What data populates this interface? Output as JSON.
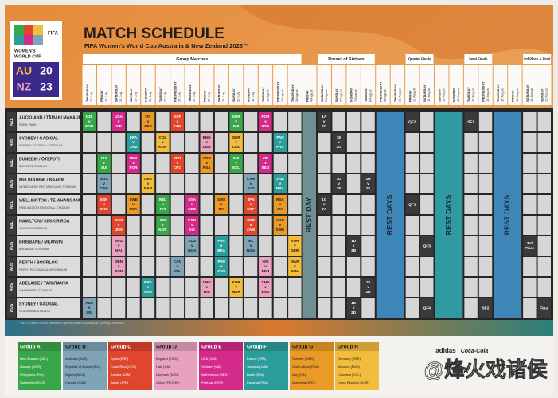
{
  "header": {
    "title": "MATCH SCHEDULE",
    "subtitle": "FIFA Women's World Cup Australia & New Zealand 2023™"
  },
  "logo": {
    "org": "FIFA",
    "name": [
      "WOMEN'S",
      "WORLD CUP"
    ],
    "code": [
      "AU",
      "NZ"
    ],
    "year": [
      "20",
      "23"
    ]
  },
  "stages": [
    "Group Matches",
    "Round of Sixteen",
    "Quarter Finals",
    "Semi Finals",
    "3rd Place & Final"
  ],
  "dates": [
    {
      "day": "THURSDAY",
      "date": "20 July"
    },
    {
      "day": "FRIDAY",
      "date": "21 July"
    },
    {
      "day": "SATURDAY",
      "date": "22 July"
    },
    {
      "day": "SUNDAY",
      "date": "23 July"
    },
    {
      "day": "MONDAY",
      "date": "24 July"
    },
    {
      "day": "TUESDAY",
      "date": "25 July"
    },
    {
      "day": "WEDNESDAY",
      "date": "26 July"
    },
    {
      "day": "THURSDAY",
      "date": "27 July"
    },
    {
      "day": "FRIDAY",
      "date": "28 July"
    },
    {
      "day": "SATURDAY",
      "date": "29 July"
    },
    {
      "day": "SUNDAY",
      "date": "30 July"
    },
    {
      "day": "MONDAY",
      "date": "31 July"
    },
    {
      "day": "TUESDAY",
      "date": "1 August"
    },
    {
      "day": "WEDNESDAY",
      "date": "2 August"
    },
    {
      "day": "THURSDAY",
      "date": "3 August"
    },
    {
      "day": "FRIDAY",
      "date": "4 August"
    },
    {
      "day": "SATURDAY",
      "date": "5 August"
    },
    {
      "day": "SUNDAY",
      "date": "6 August"
    },
    {
      "day": "MONDAY",
      "date": "7 August"
    },
    {
      "day": "TUESDAY",
      "date": "8 August"
    },
    {
      "day": "WEDNESDAY",
      "date": "9 August"
    },
    {
      "day": "THURSDAY",
      "date": "10 August"
    },
    {
      "day": "FRIDAY",
      "date": "11 August"
    },
    {
      "day": "SATURDAY",
      "date": "12 August"
    },
    {
      "day": "SUNDAY",
      "date": "13 August"
    },
    {
      "day": "MONDAY",
      "date": "14 August"
    },
    {
      "day": "TUESDAY",
      "date": "15 August"
    },
    {
      "day": "WEDNESDAY",
      "date": "16 August"
    },
    {
      "day": "THURSDAY",
      "date": "17 August"
    },
    {
      "day": "FRIDAY",
      "date": "18 August"
    },
    {
      "day": "SATURDAY",
      "date": "19 August"
    },
    {
      "day": "SUNDAY",
      "date": "20 August"
    }
  ],
  "rest_labels": [
    "REST DAY",
    "REST DAYS",
    "REST DAYS",
    "REST DAYS"
  ],
  "venues": [
    {
      "country": "NZL",
      "city": "AUCKLAND / TĀMAKI MAKAURAU",
      "stadium": "EDEN PARK",
      "cells": [
        {
          "lines": [
            "NZL",
            "v",
            "NOR"
          ],
          "color": "#3aa64a"
        },
        null,
        {
          "lines": [
            "USA",
            "v",
            "VIE"
          ],
          "color": "#d42b8b"
        },
        null,
        {
          "lines": [
            "ITA",
            "v",
            "ARG"
          ],
          "color": "#ea9a26"
        },
        null,
        {
          "lines": [
            "ESP",
            "v",
            "ZAM"
          ],
          "color": "#e0452e"
        },
        null,
        null,
        null,
        {
          "lines": [
            "NOR",
            "v",
            "PHI"
          ],
          "color": "#3aa64a"
        },
        null,
        {
          "lines": [
            "POR",
            "v",
            "USA"
          ],
          "color": "#d42b8b"
        },
        null,
        null,
        null,
        {
          "lines": [
            "1A",
            "v",
            "2C"
          ],
          "color": "#3a3a3a"
        },
        null,
        null,
        null,
        null,
        null,
        {
          "lines": [
            "QF2"
          ],
          "color": "#3a3a3a"
        },
        null,
        null,
        null,
        {
          "lines": [
            "SF1"
          ],
          "color": "#3a3a3a"
        },
        null,
        null,
        null,
        null,
        null
      ]
    },
    {
      "country": "AUS",
      "city": "SYDNEY / GADIGAL",
      "stadium": "SYDNEY FOOTBALL STADIUM",
      "cells": [
        null,
        null,
        null,
        {
          "lines": [
            "FRA",
            "v",
            "JAM"
          ],
          "color": "#2b9e9b"
        },
        null,
        {
          "lines": [
            "COL",
            "v",
            "KOR"
          ],
          "color": "#f2bd3c"
        },
        null,
        null,
        {
          "lines": [
            "ENG",
            "v",
            "DEN"
          ],
          "color": "#e8a2bd"
        },
        null,
        {
          "lines": [
            "GER",
            "v",
            "COL"
          ],
          "color": "#f2bd3c"
        },
        null,
        null,
        {
          "lines": [
            "PAN",
            "v",
            "FRA"
          ],
          "color": "#2b9e9b"
        },
        null,
        null,
        null,
        {
          "lines": [
            "1E",
            "v",
            "2G"
          ],
          "color": "#3a3a3a"
        },
        null,
        null,
        null,
        null,
        null,
        null,
        null,
        null,
        null,
        null,
        null,
        null,
        null,
        null
      ]
    },
    {
      "country": "NZL",
      "city": "DUNEDIN / ŌTEPOTI",
      "stadium": "DUNEDIN STADIUM",
      "cells": [
        null,
        {
          "lines": [
            "PHI",
            "v",
            "SUI"
          ],
          "color": "#3aa64a"
        },
        null,
        {
          "lines": [
            "NED",
            "v",
            "POR"
          ],
          "color": "#d42b8b"
        },
        null,
        null,
        {
          "lines": [
            "JPN",
            "v",
            "CRC"
          ],
          "color": "#e0452e"
        },
        null,
        {
          "lines": [
            "ARG",
            "v",
            "RSA"
          ],
          "color": "#ea9a26"
        },
        null,
        {
          "lines": [
            "SUI",
            "v",
            "NZL"
          ],
          "color": "#3aa64a"
        },
        null,
        {
          "lines": [
            "VIE",
            "v",
            "NED"
          ],
          "color": "#d42b8b"
        },
        null,
        null,
        null,
        null,
        null,
        null,
        null,
        null,
        null,
        null,
        null,
        null,
        null,
        null,
        null,
        null,
        null,
        null,
        null
      ]
    },
    {
      "country": "AUS",
      "city": "MELBOURNE / NAARM",
      "stadium": "MELBOURNE RECTANGULAR STADIUM",
      "cells": [
        null,
        {
          "lines": [
            "NGA",
            "v",
            "CAN"
          ],
          "color": "#7ea4b6"
        },
        null,
        null,
        {
          "lines": [
            "GER",
            "v",
            "MAR"
          ],
          "color": "#f2bd3c"
        },
        null,
        null,
        null,
        null,
        null,
        null,
        {
          "lines": [
            "CAN",
            "v",
            "AUS"
          ],
          "color": "#7ea4b6"
        },
        null,
        {
          "lines": [
            "JAM",
            "v",
            "BRA"
          ],
          "color": "#2b9e9b"
        },
        null,
        null,
        null,
        {
          "lines": [
            "1G",
            "v",
            "2E"
          ],
          "color": "#3a3a3a"
        },
        null,
        {
          "lines": [
            "1H",
            "v",
            "2F"
          ],
          "color": "#3a3a3a"
        },
        null,
        null,
        null,
        null,
        null,
        null,
        null,
        null,
        null,
        null,
        null,
        null
      ]
    },
    {
      "country": "NZL",
      "city": "WELLINGTON / TE WHANGANUI-A-TARA",
      "stadium": "WELLINGTON REGIONAL STADIUM",
      "cells": [
        null,
        {
          "lines": [
            "ESP",
            "v",
            "CRC"
          ],
          "color": "#e0452e"
        },
        null,
        {
          "lines": [
            "SWE",
            "v",
            "RSA"
          ],
          "color": "#ea9a26"
        },
        null,
        {
          "lines": [
            "NZL",
            "v",
            "PHI"
          ],
          "color": "#3aa64a"
        },
        null,
        {
          "lines": [
            "USA",
            "v",
            "NED"
          ],
          "color": "#d42b8b"
        },
        null,
        {
          "lines": [
            "SWE",
            "v",
            "ITA"
          ],
          "color": "#ea9a26"
        },
        null,
        {
          "lines": [
            "JPN",
            "v",
            "ESP"
          ],
          "color": "#e0452e"
        },
        null,
        {
          "lines": [
            "RSA",
            "v",
            "ITA"
          ],
          "color": "#ea9a26"
        },
        null,
        null,
        {
          "lines": [
            "1C",
            "v",
            "2A"
          ],
          "color": "#3a3a3a"
        },
        null,
        null,
        null,
        null,
        null,
        {
          "lines": [
            "QF1"
          ],
          "color": "#3a3a3a"
        },
        null,
        null,
        null,
        null,
        null,
        null,
        null,
        null,
        null
      ]
    },
    {
      "country": "NZL",
      "city": "HAMILTON / KIRIKIRIROA",
      "stadium": "WAIKATO STADIUM",
      "cells": [
        null,
        null,
        {
          "lines": [
            "ZAM",
            "v",
            "JPN"
          ],
          "color": "#e0452e"
        },
        null,
        null,
        {
          "lines": [
            "SUI",
            "v",
            "NOR"
          ],
          "color": "#3aa64a"
        },
        null,
        {
          "lines": [
            "POR",
            "v",
            "VIE"
          ],
          "color": "#d42b8b"
        },
        null,
        null,
        null,
        {
          "lines": [
            "CRC",
            "v",
            "ZAM"
          ],
          "color": "#e0452e"
        },
        null,
        {
          "lines": [
            "ARG",
            "v",
            "SWE"
          ],
          "color": "#ea9a26"
        },
        null,
        null,
        null,
        null,
        null,
        null,
        null,
        null,
        null,
        null,
        null,
        null,
        null,
        null,
        null,
        null,
        null,
        null
      ]
    },
    {
      "country": "AUS",
      "city": "BRISBANE / MEANJIN",
      "stadium": "BRISBANE STADIUM",
      "cells": [
        null,
        null,
        {
          "lines": [
            "ENG",
            "v",
            "HAI"
          ],
          "color": "#e8a2bd"
        },
        null,
        null,
        null,
        null,
        {
          "lines": [
            "AUS",
            "v",
            "NGA"
          ],
          "color": "#7ea4b6"
        },
        null,
        {
          "lines": [
            "FRA",
            "v",
            "BRA"
          ],
          "color": "#2b9e9b"
        },
        null,
        {
          "lines": [
            "IRL",
            "v",
            "NGA"
          ],
          "color": "#7ea4b6"
        },
        null,
        null,
        {
          "lines": [
            "KOR",
            "v",
            "GER"
          ],
          "color": "#f2bd3c"
        },
        null,
        null,
        null,
        {
          "lines": [
            "1D",
            "v",
            "2B"
          ],
          "color": "#3a3a3a"
        },
        null,
        null,
        null,
        null,
        {
          "lines": [
            "QF3"
          ],
          "color": "#3a3a3a"
        },
        null,
        null,
        null,
        null,
        null,
        null,
        {
          "lines": [
            "3rd",
            "Place"
          ],
          "color": "#3a3a3a"
        },
        null
      ]
    },
    {
      "country": "AUS",
      "city": "PERTH / BOORLOO",
      "stadium": "PERTH RECTANGULAR STADIUM",
      "cells": [
        null,
        null,
        {
          "lines": [
            "DEN",
            "v",
            "CHN"
          ],
          "color": "#e8a2bd"
        },
        null,
        null,
        null,
        {
          "lines": [
            "CAN",
            "v",
            "IRL"
          ],
          "color": "#7ea4b6"
        },
        null,
        null,
        {
          "lines": [
            "PAN",
            "v",
            "JAM"
          ],
          "color": "#2b9e9b"
        },
        null,
        null,
        {
          "lines": [
            "HAI",
            "v",
            "DEN"
          ],
          "color": "#e8a2bd"
        },
        null,
        {
          "lines": [
            "MAR",
            "v",
            "COL"
          ],
          "color": "#f2bd3c"
        },
        null,
        null,
        null,
        null,
        null,
        null,
        null,
        null,
        null,
        null,
        null,
        null,
        null,
        null,
        null,
        null,
        null
      ]
    },
    {
      "country": "AUS",
      "city": "ADELAIDE / TARNTANYA",
      "stadium": "HINDMARSH STADIUM",
      "cells": [
        null,
        null,
        null,
        null,
        {
          "lines": [
            "BRA",
            "v",
            "PAN"
          ],
          "color": "#2b9e9b"
        },
        null,
        null,
        null,
        {
          "lines": [
            "CHN",
            "v",
            "HAI"
          ],
          "color": "#e8a2bd"
        },
        null,
        {
          "lines": [
            "KOR",
            "v",
            "MAR"
          ],
          "color": "#f2bd3c"
        },
        null,
        {
          "lines": [
            "CHN",
            "v",
            "ENG"
          ],
          "color": "#e8a2bd"
        },
        null,
        null,
        null,
        null,
        null,
        null,
        {
          "lines": [
            "1F",
            "v",
            "2H"
          ],
          "color": "#3a3a3a"
        },
        null,
        null,
        null,
        null,
        null,
        null,
        null,
        null,
        null,
        null,
        null,
        null
      ]
    },
    {
      "country": "AUS",
      "city": "SYDNEY / GADIGAL",
      "stadium": "STADIUM AUSTRALIA",
      "cells": [
        {
          "lines": [
            "AUS",
            "v",
            "IRL"
          ],
          "color": "#7ea4b6"
        },
        null,
        null,
        null,
        null,
        null,
        null,
        null,
        null,
        null,
        null,
        null,
        null,
        null,
        null,
        null,
        null,
        null,
        {
          "lines": [
            "1B",
            "v",
            "2D"
          ],
          "color": "#3a3a3a"
        },
        null,
        null,
        null,
        null,
        {
          "lines": [
            "QF4"
          ],
          "color": "#3a3a3a"
        },
        null,
        null,
        null,
        {
          "lines": [
            "SF2"
          ],
          "color": "#3a3a3a"
        },
        null,
        null,
        null,
        {
          "lines": [
            "Final"
          ],
          "color": "#3a3a3a"
        }
      ]
    }
  ],
  "note": "* NOTE: Match in AUS will be the Opening match including the Opening Ceremony",
  "groups": [
    {
      "name": "Group A",
      "color": "#3aa64a",
      "teams": [
        "New Zealand (NZL)",
        "Norway (NOR)",
        "Philippines (PHI)",
        "Switzerland (SUI)"
      ]
    },
    {
      "name": "Group B",
      "color": "#7ea4b6",
      "teams": [
        "Australia (AUS)",
        "Republic of Ireland (IRL)",
        "Nigeria (NGA)",
        "Canada (CAN)"
      ]
    },
    {
      "name": "Group C",
      "color": "#e0452e",
      "teams": [
        "Spain (ESP)",
        "Costa Rica (CRC)",
        "Zambia (ZAM)",
        "Japan (JPN)"
      ]
    },
    {
      "name": "Group D",
      "color": "#e8a2bd",
      "teams": [
        "England (ENG)",
        "Haiti (HAI)",
        "Denmark (DEN)",
        "China PR (CHN)"
      ]
    },
    {
      "name": "Group E",
      "color": "#d42b8b",
      "teams": [
        "USA (USA)",
        "Vietnam (VIE)",
        "Netherlands (NED)",
        "Portugal (POR)"
      ]
    },
    {
      "name": "Group F",
      "color": "#2b9e9b",
      "teams": [
        "France (FRA)",
        "Jamaica (JAM)",
        "Brazil (BRA)",
        "Panama (PAN)"
      ]
    },
    {
      "name": "Group G",
      "color": "#ea9a26",
      "teams": [
        "Sweden (SWE)",
        "South Africa (RSA)",
        "Italy (ITA)",
        "Argentina (ARG)"
      ]
    },
    {
      "name": "Group H",
      "color": "#f2bd3c",
      "teams": [
        "Germany (GER)",
        "Morocco (MAR)",
        "Colombia (COL)",
        "Korea Republic (KOR)"
      ]
    }
  ],
  "sponsors": [
    "adidas",
    "Coca-Cola",
    "VISA"
  ],
  "watermark": "@烽火戏诸侯"
}
